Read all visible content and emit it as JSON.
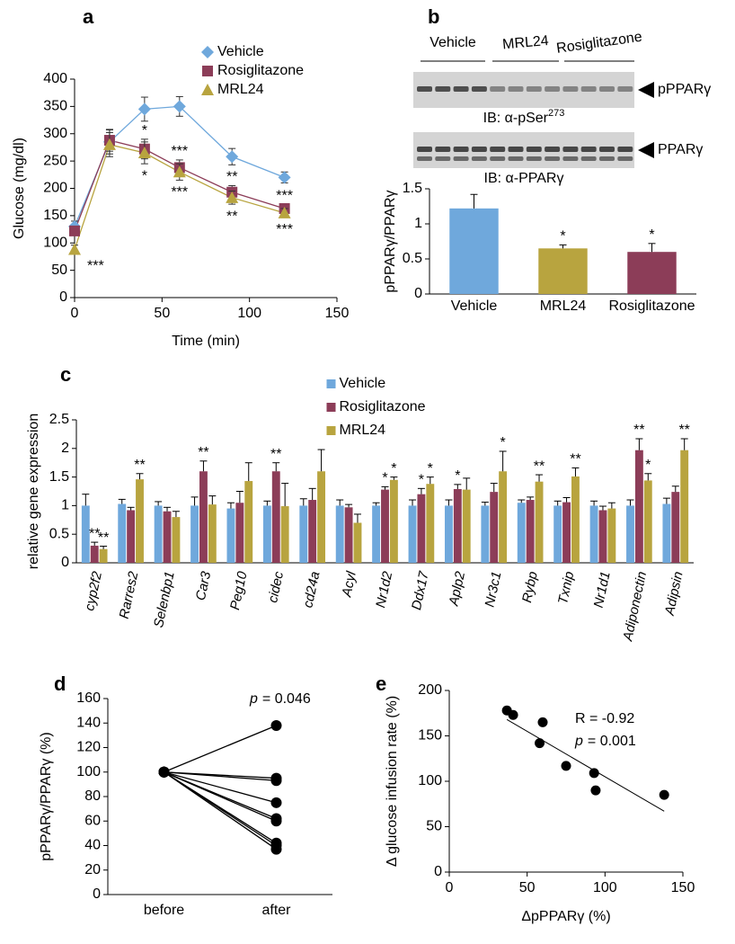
{
  "chart_data": [
    {
      "panel": "a",
      "type": "line",
      "x": [
        0,
        20,
        40,
        60,
        90,
        120
      ],
      "xlim": [
        0,
        150
      ],
      "xticks": [
        0,
        50,
        100,
        150
      ],
      "ylim": [
        0,
        400
      ],
      "yticks": [
        0,
        50,
        100,
        150,
        200,
        250,
        300,
        350,
        400
      ],
      "xlabel": "Time (min)",
      "ylabel": "Glucose (mg/dl)",
      "legend": "top right",
      "series": [
        {
          "name": "Vehicle",
          "color": "#6fa8dc",
          "marker": "diamond",
          "values": [
            130,
            285,
            345,
            350,
            258,
            220
          ],
          "errors": [
            10,
            22,
            22,
            18,
            15,
            10
          ]
        },
        {
          "name": "Rosiglitazone",
          "color": "#8c3d58",
          "marker": "square",
          "values": [
            122,
            288,
            272,
            238,
            193,
            163
          ],
          "errors": [
            8,
            20,
            18,
            14,
            12,
            8
          ],
          "significance": [
            null,
            null,
            "*",
            "***",
            "**",
            "***"
          ],
          "significance_side": "above"
        },
        {
          "name": "MRL24",
          "color": "#b8a43f",
          "marker": "triangle",
          "values": [
            88,
            280,
            265,
            230,
            183,
            155
          ],
          "errors": [
            8,
            22,
            20,
            15,
            12,
            8
          ],
          "significance": [
            "***",
            null,
            "*",
            "***",
            "**",
            "***"
          ],
          "significance_side": "below"
        }
      ]
    },
    {
      "panel": "b",
      "type": "bar",
      "categories": [
        "Vehicle",
        "MRL24",
        "Rosiglitazone"
      ],
      "values": [
        1.22,
        0.65,
        0.6
      ],
      "errors": [
        0.2,
        0.05,
        0.12
      ],
      "colors": [
        "#6fa8dc",
        "#b8a43f",
        "#8c3d58"
      ],
      "significance": [
        null,
        "*",
        "*"
      ],
      "ylim": [
        0,
        1.5
      ],
      "yticks": [
        0,
        0.5,
        1,
        1.5
      ],
      "ylabel": "pPPARγ/PPARγ"
    },
    {
      "panel": "c",
      "type": "bar",
      "legend": "top center",
      "categories": [
        "cyp2f2",
        "Rarres2",
        "Selenbp1",
        "Car3",
        "Peg10",
        "cidec",
        "cd24a",
        "Acyl",
        "Nr1d2",
        "Ddx17",
        "Aplp2",
        "Nr3c1",
        "Rybp",
        "Txnip",
        "Nr1d1",
        "Adiponectin",
        "Adipsin"
      ],
      "ylim": [
        0,
        2.5
      ],
      "yticks": [
        0,
        0.5,
        1,
        1.5,
        2,
        2.5
      ],
      "ylabel": "relative gene expression",
      "series": [
        {
          "name": "Vehicle",
          "color": "#6fa8dc",
          "values": [
            1.0,
            1.03,
            1.0,
            1.0,
            0.95,
            1.0,
            1.0,
            1.0,
            1.0,
            1.0,
            1.0,
            1.0,
            1.05,
            1.0,
            1.0,
            1.0,
            1.03
          ],
          "errors": [
            0.2,
            0.08,
            0.07,
            0.15,
            0.1,
            0.08,
            0.12,
            0.1,
            0.05,
            0.1,
            0.1,
            0.06,
            0.05,
            0.08,
            0.08,
            0.1,
            0.1
          ]
        },
        {
          "name": "Rosiglitazone",
          "color": "#8c3d58",
          "values": [
            0.3,
            0.92,
            0.9,
            1.6,
            1.05,
            1.6,
            1.1,
            0.97,
            1.28,
            1.2,
            1.29,
            1.24,
            1.1,
            1.06,
            0.92,
            1.97,
            1.24
          ],
          "errors": [
            0.06,
            0.05,
            0.07,
            0.18,
            0.2,
            0.15,
            0.2,
            0.05,
            0.05,
            0.1,
            0.08,
            0.15,
            0.05,
            0.08,
            0.07,
            0.2,
            0.1
          ],
          "significance": [
            "**",
            null,
            null,
            "**",
            null,
            "**",
            null,
            null,
            "*",
            "*",
            "*",
            null,
            null,
            null,
            null,
            "**",
            null
          ]
        },
        {
          "name": "MRL24",
          "color": "#b8a43f",
          "values": [
            0.24,
            1.46,
            0.8,
            1.02,
            1.43,
            0.99,
            1.6,
            0.7,
            1.45,
            1.38,
            1.28,
            1.6,
            1.42,
            1.51,
            0.95,
            1.44,
            1.97
          ],
          "errors": [
            0.05,
            0.1,
            0.1,
            0.15,
            0.32,
            0.4,
            0.38,
            0.15,
            0.05,
            0.12,
            0.2,
            0.35,
            0.12,
            0.15,
            0.1,
            0.12,
            0.2
          ],
          "significance": [
            "**",
            "**",
            null,
            null,
            null,
            null,
            null,
            null,
            "*",
            "*",
            null,
            "*",
            "**",
            "**",
            null,
            "*",
            "**"
          ]
        }
      ]
    },
    {
      "panel": "d",
      "type": "line",
      "categories": [
        "before",
        "after"
      ],
      "color": "#000000",
      "ylim": [
        0,
        160
      ],
      "yticks": [
        0,
        20,
        40,
        60,
        80,
        100,
        120,
        140,
        160
      ],
      "ylabel": "pPPARγ/PPARγ (%)",
      "annotations": [
        {
          "italic": "p",
          "text": "= 0.046"
        }
      ],
      "series": [
        {
          "values": [
            100,
            138
          ]
        },
        {
          "values": [
            100,
            95
          ]
        },
        {
          "values": [
            100,
            93
          ]
        },
        {
          "values": [
            100,
            75
          ]
        },
        {
          "values": [
            100,
            62
          ]
        },
        {
          "values": [
            100,
            60
          ]
        },
        {
          "values": [
            100,
            42
          ]
        },
        {
          "values": [
            100,
            40
          ]
        },
        {
          "values": [
            100,
            37
          ]
        }
      ]
    },
    {
      "panel": "e",
      "type": "scatter",
      "x": [
        37,
        41,
        58,
        60,
        75,
        93,
        94,
        138
      ],
      "values": [
        178,
        173,
        142,
        165,
        117,
        109,
        90,
        85
      ],
      "fit": {
        "x": [
          37,
          138
        ],
        "y": [
          168,
          67
        ]
      },
      "color": "#000000",
      "xlim": [
        0,
        150
      ],
      "xticks": [
        0,
        50,
        100,
        150
      ],
      "ylim": [
        0,
        200
      ],
      "yticks": [
        0,
        50,
        100,
        150,
        200
      ],
      "xlabel": "ΔpPPARγ (%)",
      "ylabel": "Δ glucose infusion rate (%)",
      "annotations": [
        {
          "text": "R = -0.92"
        },
        {
          "italic": "p",
          "text": "= 0.001"
        }
      ]
    }
  ],
  "blot": {
    "lanes": [
      "Vehicle",
      "MRL24",
      "Rosiglitazone"
    ],
    "blots": [
      {
        "band": "pPPARγ",
        "ib": "IB: α-pSer",
        "sup": "273"
      },
      {
        "band": "PPARγ",
        "ib": "IB: α-PPARγ"
      }
    ]
  }
}
